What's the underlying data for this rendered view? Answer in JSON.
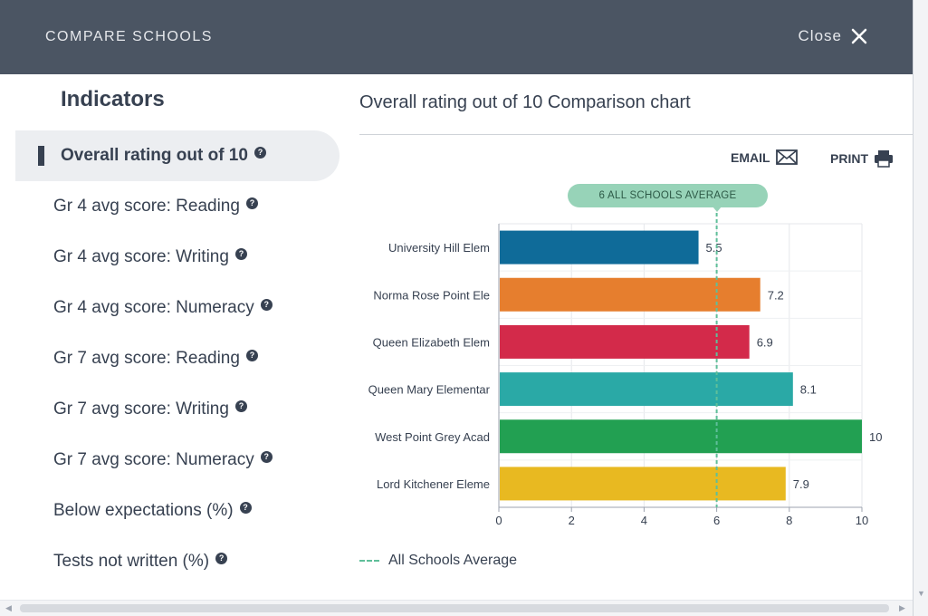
{
  "header": {
    "title": "COMPARE SCHOOLS",
    "close_label": "Close"
  },
  "indicators": {
    "title": "Indicators",
    "items": [
      {
        "label": "Overall rating out of 10",
        "active": true
      },
      {
        "label": "Gr 4 avg score: Reading",
        "active": false
      },
      {
        "label": "Gr 4 avg score: Writing",
        "active": false
      },
      {
        "label": "Gr 4 avg score: Numeracy",
        "active": false
      },
      {
        "label": "Gr 7 avg score: Reading",
        "active": false
      },
      {
        "label": "Gr 7 avg score: Writing",
        "active": false
      },
      {
        "label": "Gr 7 avg score: Numeracy",
        "active": false
      },
      {
        "label": "Below expectations (%)",
        "active": false
      },
      {
        "label": "Tests not written (%)",
        "active": false
      }
    ],
    "help_glyph": "?"
  },
  "chart_panel": {
    "title": "Overall rating out of 10 Comparison chart",
    "email_label": "EMAIL",
    "print_label": "PRINT",
    "average_pill": "6 ALL SCHOOLS AVERAGE",
    "legend_label": "All Schools Average"
  },
  "chart_data": {
    "type": "bar",
    "orientation": "horizontal",
    "categories": [
      "University Hill Elem",
      "Norma Rose Point Ele",
      "Queen Elizabeth Elem",
      "Queen Mary Elementar",
      "West Point Grey Acad",
      "Lord Kitchener Eleme"
    ],
    "values": [
      5.5,
      7.2,
      6.9,
      8.1,
      10,
      7.9
    ],
    "value_labels": [
      "5.5",
      "7.2",
      "6.9",
      "8.1",
      "10",
      "7.9"
    ],
    "colors": [
      "#0f6b99",
      "#e67e2e",
      "#d32a4a",
      "#2aa9a6",
      "#22a052",
      "#e8b921"
    ],
    "xlim": [
      0,
      10
    ],
    "xticks": [
      "0",
      "2",
      "4",
      "6",
      "8",
      "10"
    ],
    "average": 6,
    "average_color": "#5fbf9a",
    "grid": true
  },
  "icons": {
    "close": "close-icon",
    "email": "envelope-icon",
    "print": "printer-icon",
    "help": "help-icon"
  }
}
